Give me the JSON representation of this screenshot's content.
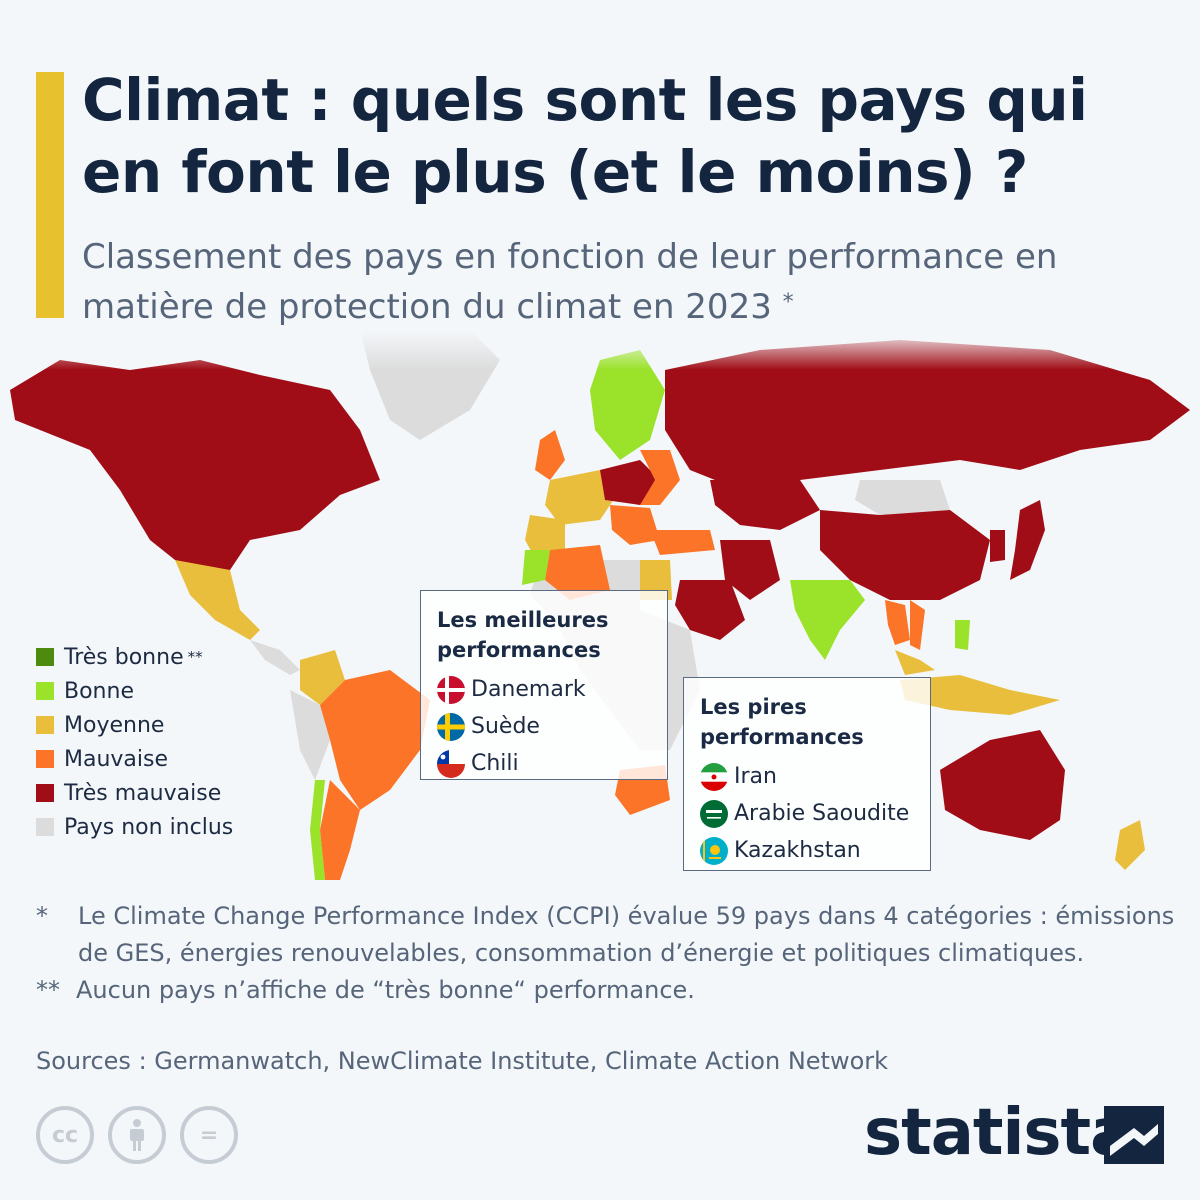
{
  "header": {
    "title": "Climat : quels sont les pays qui en font le plus (et le moins) ?",
    "subtitle": "Classement des pays en fonction de leur performance en matière de protection du climat en 2023",
    "subtitle_mark": "*"
  },
  "legend": {
    "items": [
      {
        "label": "Très bonne",
        "mark": "**",
        "color": "#4e8a0e"
      },
      {
        "label": "Bonne",
        "mark": "",
        "color": "#9be22a"
      },
      {
        "label": "Moyenne",
        "mark": "",
        "color": "#e8be3c"
      },
      {
        "label": "Mauvaise",
        "mark": "",
        "color": "#fb7427"
      },
      {
        "label": "Très mauvaise",
        "mark": "",
        "color": "#a00d16"
      },
      {
        "label": "Pays non inclus",
        "mark": "",
        "color": "#dcdcdc"
      }
    ]
  },
  "best_box": {
    "title": "Les meilleures performances",
    "items": [
      {
        "country": "Danemark",
        "flag": "denmark-flag-icon"
      },
      {
        "country": "Suède",
        "flag": "sweden-flag-icon"
      },
      {
        "country": "Chili",
        "flag": "chile-flag-icon"
      }
    ]
  },
  "worst_box": {
    "title": "Les pires performances",
    "items": [
      {
        "country": "Iran",
        "flag": "iran-flag-icon"
      },
      {
        "country": "Arabie Saoudite",
        "flag": "saudi-arabia-flag-icon"
      },
      {
        "country": "Kazakhstan",
        "flag": "kazakhstan-flag-icon"
      }
    ]
  },
  "notes": {
    "note1_mark": "*",
    "note1": "Le Climate Change Performance Index (CCPI) évalue 59 pays dans 4 catégories : émissions de GES, énergies renouvelables, consommation d’énergie et politiques climatiques.",
    "note2_mark": "**",
    "note2": "Aucun pays n’affiche de “très bonne“ performance.",
    "source": "Sources : Germanwatch, NewClimate Institute, Climate Action Network"
  },
  "footer": {
    "brand": "statista",
    "license_icons": [
      "cc-icon",
      "attribution-icon",
      "no-derivatives-icon"
    ],
    "cc_label": "cc",
    "nd_label": "="
  },
  "colors": {
    "accent": "#e8c12e",
    "very_bad": "#a00d16",
    "bad": "#fb7427",
    "medium": "#e8be3c",
    "good": "#9be22a",
    "not_included": "#dcdcdc"
  }
}
